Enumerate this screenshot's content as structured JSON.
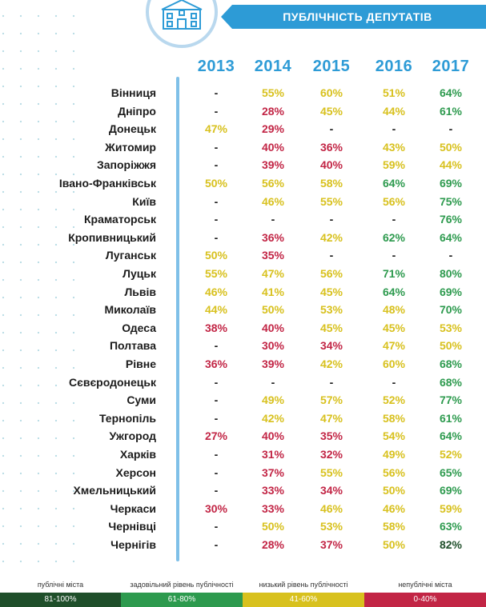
{
  "banner_title": "ПУБЛІЧНІСТЬ ДЕПУТАТІВ",
  "emblem_icon": "building-icon",
  "colors": {
    "red": "#c22545",
    "yellow": "#d8c11e",
    "green": "#2d9a4e",
    "dark_green": "#1f4f2a",
    "accent": "#2d9bd6"
  },
  "chart_data": {
    "type": "table",
    "title": "ПУБЛІЧНІСТЬ ДЕПУТАТІВ",
    "columns": [
      "2013",
      "2014",
      "2015",
      "2016",
      "2017"
    ],
    "rows": [
      {
        "city": "Вінниця",
        "values": [
          "-",
          "55%",
          "60%",
          "51%",
          "64%"
        ]
      },
      {
        "city": "Дніпро",
        "values": [
          "-",
          "28%",
          "45%",
          "44%",
          "61%"
        ]
      },
      {
        "city": "Донецьк",
        "values": [
          "47%",
          "29%",
          "-",
          "-",
          "-"
        ]
      },
      {
        "city": "Житомир",
        "values": [
          "-",
          "40%",
          "36%",
          "43%",
          "50%"
        ]
      },
      {
        "city": "Запоріжжя",
        "values": [
          "-",
          "39%",
          "40%",
          "59%",
          "44%"
        ]
      },
      {
        "city": "Івано-Франківськ",
        "values": [
          "50%",
          "56%",
          "58%",
          "64%",
          "69%"
        ]
      },
      {
        "city": "Київ",
        "values": [
          "-",
          "46%",
          "55%",
          "56%",
          "75%"
        ]
      },
      {
        "city": "Краматорськ",
        "values": [
          "-",
          "-",
          "-",
          "-",
          "76%"
        ]
      },
      {
        "city": "Кропивницький",
        "values": [
          "-",
          "36%",
          "42%",
          "62%",
          "64%"
        ]
      },
      {
        "city": "Луганськ",
        "values": [
          "50%",
          "35%",
          "-",
          "-",
          "-"
        ]
      },
      {
        "city": "Луцьк",
        "values": [
          "55%",
          "47%",
          "56%",
          "71%",
          "80%"
        ]
      },
      {
        "city": "Львів",
        "values": [
          "46%",
          "41%",
          "45%",
          "64%",
          "69%"
        ]
      },
      {
        "city": "Миколаїв",
        "values": [
          "44%",
          "50%",
          "53%",
          "48%",
          "70%"
        ]
      },
      {
        "city": "Одеса",
        "values": [
          "38%",
          "40%",
          "45%",
          "45%",
          "53%"
        ]
      },
      {
        "city": "Полтава",
        "values": [
          "-",
          "30%",
          "34%",
          "47%",
          "50%"
        ]
      },
      {
        "city": "Рівне",
        "values": [
          "36%",
          "39%",
          "42%",
          "60%",
          "68%"
        ]
      },
      {
        "city": "Сєвєродонецьк",
        "values": [
          "-",
          "-",
          "-",
          "-",
          "68%"
        ]
      },
      {
        "city": "Суми",
        "values": [
          "-",
          "49%",
          "57%",
          "52%",
          "77%"
        ]
      },
      {
        "city": "Тернопіль",
        "values": [
          "-",
          "42%",
          "47%",
          "58%",
          "61%"
        ]
      },
      {
        "city": "Ужгород",
        "values": [
          "27%",
          "40%",
          "35%",
          "54%",
          "64%"
        ]
      },
      {
        "city": "Харків",
        "values": [
          "-",
          "31%",
          "32%",
          "49%",
          "52%"
        ]
      },
      {
        "city": "Херсон",
        "values": [
          "-",
          "37%",
          "55%",
          "56%",
          "65%"
        ]
      },
      {
        "city": "Хмельницький",
        "values": [
          "-",
          "33%",
          "34%",
          "50%",
          "69%"
        ]
      },
      {
        "city": "Черкаси",
        "values": [
          "30%",
          "33%",
          "46%",
          "46%",
          "59%"
        ]
      },
      {
        "city": "Чернівці",
        "values": [
          "-",
          "50%",
          "53%",
          "58%",
          "63%"
        ]
      },
      {
        "city": "Чернігів",
        "values": [
          "-",
          "28%",
          "37%",
          "50%",
          "82%"
        ]
      }
    ]
  },
  "legend": [
    {
      "label": "публічні міста",
      "range": "81-100%",
      "color": "#1f4f2a"
    },
    {
      "label": "задовільний рівень публічності",
      "range": "61-80%",
      "color": "#2d9a4e"
    },
    {
      "label": "низький рівень публічності",
      "range": "41-60%",
      "color": "#d8c11e"
    },
    {
      "label": "непублічні міста",
      "range": "0-40%",
      "color": "#c22545"
    }
  ]
}
